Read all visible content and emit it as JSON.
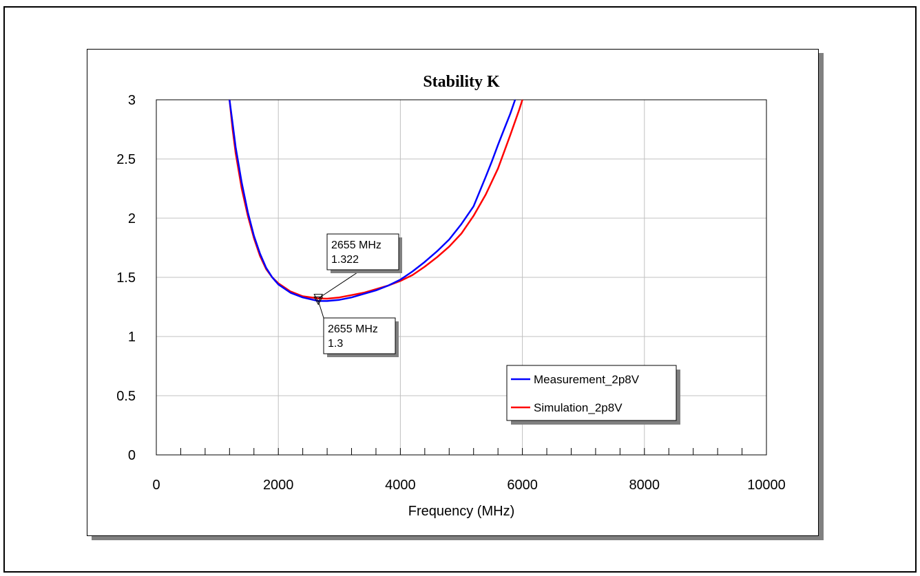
{
  "chart_data": {
    "type": "line",
    "title": "Stability K",
    "xlabel": "Frequency (MHz)",
    "ylabel": "",
    "xlim": [
      0,
      10000
    ],
    "ylim": [
      0,
      3
    ],
    "x_ticks": [
      0,
      2000,
      4000,
      6000,
      8000,
      10000
    ],
    "y_ticks": [
      0,
      0.5,
      1,
      1.5,
      2,
      2.5,
      3
    ],
    "grid": true,
    "legend_position": "bottom-right",
    "series": [
      {
        "name": "Measurement_2p8V",
        "color": "#0000ff",
        "x": [
          1200,
          1250,
          1300,
          1400,
          1500,
          1600,
          1700,
          1800,
          1900,
          2000,
          2200,
          2400,
          2655,
          2800,
          3000,
          3200,
          3400,
          3600,
          3800,
          4000,
          4200,
          4400,
          4600,
          4800,
          5000,
          5200,
          5400,
          5500,
          5600,
          5700,
          5800,
          5880
        ],
        "y": [
          3.0,
          2.8,
          2.6,
          2.3,
          2.05,
          1.85,
          1.7,
          1.58,
          1.5,
          1.44,
          1.37,
          1.33,
          1.3,
          1.3,
          1.31,
          1.33,
          1.36,
          1.39,
          1.43,
          1.48,
          1.55,
          1.63,
          1.72,
          1.82,
          1.95,
          2.1,
          2.35,
          2.48,
          2.62,
          2.75,
          2.88,
          3.0
        ]
      },
      {
        "name": "Simulation_2p8V",
        "color": "#ff0000",
        "x": [
          1200,
          1250,
          1300,
          1400,
          1500,
          1600,
          1700,
          1800,
          1900,
          2000,
          2200,
          2400,
          2655,
          2800,
          3000,
          3200,
          3400,
          3600,
          3800,
          4000,
          4200,
          4400,
          4600,
          4800,
          5000,
          5200,
          5400,
          5600,
          5800,
          5950,
          6000
        ],
        "y": [
          3.0,
          2.75,
          2.55,
          2.25,
          2.02,
          1.83,
          1.68,
          1.57,
          1.5,
          1.45,
          1.38,
          1.34,
          1.322,
          1.32,
          1.33,
          1.35,
          1.37,
          1.4,
          1.43,
          1.47,
          1.52,
          1.59,
          1.67,
          1.76,
          1.87,
          2.02,
          2.2,
          2.42,
          2.7,
          2.92,
          3.0
        ]
      }
    ],
    "markers": [
      {
        "freq_label": "2655 MHz",
        "value_label": "1.322",
        "x": 2655,
        "y": 1.322
      },
      {
        "freq_label": "2655 MHz",
        "value_label": "1.3",
        "x": 2655,
        "y": 1.3
      }
    ]
  }
}
